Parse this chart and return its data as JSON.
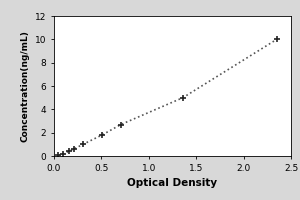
{
  "x_data": [
    0.047,
    0.1,
    0.154,
    0.21,
    0.306,
    0.506,
    0.706,
    1.36,
    2.35
  ],
  "y_data": [
    0.05,
    0.2,
    0.4,
    0.6,
    1.0,
    1.8,
    2.7,
    5.0,
    10.0
  ],
  "line_color": "#555555",
  "marker_color": "#222222",
  "marker_style": "+",
  "marker_size": 5,
  "marker_linewidth": 1.2,
  "linestyle": "dotted",
  "linewidth": 1.2,
  "xlabel": "Optical Density",
  "ylabel": "Concentration(ng/mL)",
  "xlim": [
    0,
    2.5
  ],
  "ylim": [
    0,
    12
  ],
  "xticks": [
    0,
    0.5,
    1,
    1.5,
    2,
    2.5
  ],
  "yticks": [
    0,
    2,
    4,
    6,
    8,
    10,
    12
  ],
  "xlabel_fontsize": 7.5,
  "ylabel_fontsize": 6.5,
  "tick_fontsize": 6.5,
  "bg_color": "#ffffff",
  "outer_bg": "#d8d8d8",
  "spine_color": "#000000",
  "fig_width": 3.0,
  "fig_height": 2.0
}
